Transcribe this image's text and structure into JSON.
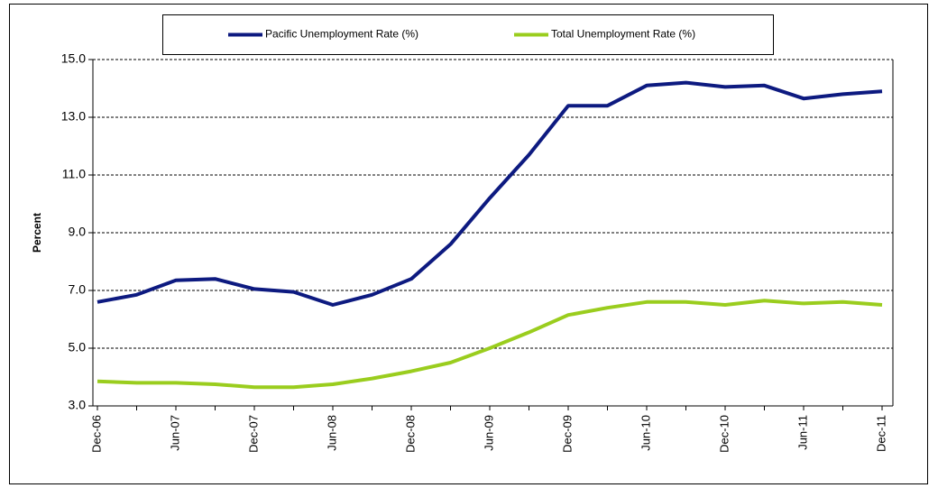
{
  "chart_data": {
    "type": "line",
    "ylabel": "Percent",
    "categories": [
      "Dec-06",
      null,
      "Jun-07",
      null,
      "Dec-07",
      null,
      "Jun-08",
      null,
      "Dec-08",
      null,
      "Jun-09",
      null,
      "Dec-09",
      null,
      "Jun-10",
      null,
      "Dec-10",
      null,
      "Jun-11",
      null,
      "Dec-11"
    ],
    "series": [
      {
        "name": "Pacific Unemployment Rate (%)",
        "color": "#0d1a80",
        "values": [
          6.6,
          6.85,
          7.35,
          7.4,
          7.05,
          6.95,
          6.5,
          6.85,
          7.4,
          8.6,
          10.2,
          11.7,
          13.4,
          13.4,
          14.1,
          14.2,
          14.05,
          14.1,
          13.65,
          13.8,
          13.9
        ]
      },
      {
        "name": "Total Unemployment Rate (%)",
        "color": "#9acd1e",
        "values": [
          3.85,
          3.8,
          3.8,
          3.75,
          3.65,
          3.65,
          3.75,
          3.95,
          4.2,
          4.5,
          5.0,
          5.55,
          6.15,
          6.4,
          6.6,
          6.6,
          6.5,
          6.65,
          6.55,
          6.6,
          6.5
        ]
      }
    ],
    "ylim": [
      3,
      15
    ],
    "yticks": [
      {
        "value": 3,
        "label": "3.0"
      },
      {
        "value": 5,
        "label": "5.0"
      },
      {
        "value": 7,
        "label": "7.0"
      },
      {
        "value": 9,
        "label": "9.0"
      },
      {
        "value": 11,
        "label": "11.0"
      },
      {
        "value": 13,
        "label": "13.0"
      },
      {
        "value": 15,
        "label": "15.0"
      }
    ],
    "grid": true,
    "legend": "top"
  }
}
